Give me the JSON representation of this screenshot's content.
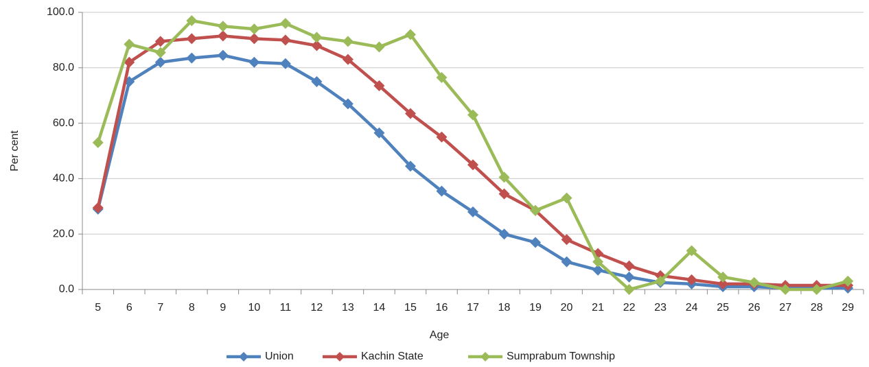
{
  "chart_data": {
    "type": "line",
    "x_label": "Age",
    "y_label": "Per cent",
    "categories": [
      5,
      6,
      7,
      8,
      9,
      10,
      11,
      12,
      13,
      14,
      15,
      16,
      17,
      18,
      19,
      20,
      21,
      22,
      23,
      24,
      25,
      26,
      27,
      28,
      29
    ],
    "series": [
      {
        "name": "Union",
        "color": "#4f81bd",
        "values": [
          29,
          75,
          82,
          83.5,
          84.5,
          82,
          81.5,
          75,
          67,
          56.5,
          44.5,
          35.5,
          28,
          20,
          17,
          10,
          7,
          4.5,
          2.5,
          2,
          1,
          1,
          0.5,
          0.5,
          0.5
        ]
      },
      {
        "name": "Kachin State",
        "color": "#c0504d",
        "values": [
          29.5,
          82,
          89.5,
          90.5,
          91.5,
          90.5,
          90,
          88,
          83,
          73.5,
          63.5,
          55,
          45,
          34.5,
          28.5,
          18,
          13,
          8.5,
          5,
          3.5,
          2,
          2,
          1.5,
          1.5,
          1.5
        ]
      },
      {
        "name": "Sumprabum Township",
        "color": "#9bbb59",
        "values": [
          53,
          88.5,
          85.5,
          97,
          95,
          94,
          96,
          91,
          89.5,
          87.5,
          92,
          76.5,
          63,
          40.5,
          28.5,
          33,
          10,
          0,
          3,
          14,
          4.5,
          2.5,
          0,
          0,
          3
        ]
      }
    ],
    "ylim": [
      0,
      100
    ],
    "yticks": [
      {
        "value": 0,
        "label": "0.0"
      },
      {
        "value": 20,
        "label": "20.0"
      },
      {
        "value": 40,
        "label": "40.0"
      },
      {
        "value": 60,
        "label": "60.0"
      },
      {
        "value": 80,
        "label": "80.0"
      },
      {
        "value": 100,
        "label": "100.0"
      }
    ],
    "grid": true,
    "legend": "bottom"
  }
}
